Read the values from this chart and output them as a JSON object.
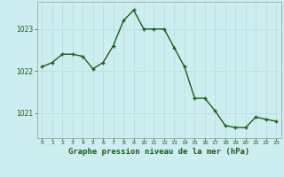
{
  "hours": [
    0,
    1,
    2,
    3,
    4,
    5,
    6,
    7,
    8,
    9,
    10,
    11,
    12,
    13,
    14,
    15,
    16,
    17,
    18,
    19,
    20,
    21,
    22,
    23
  ],
  "pressure": [
    1022.1,
    1022.2,
    1022.4,
    1022.4,
    1022.35,
    1022.05,
    1022.2,
    1022.6,
    1023.2,
    1023.45,
    1023.0,
    1023.0,
    1023.0,
    1022.55,
    1022.1,
    1021.35,
    1021.35,
    1021.05,
    1020.7,
    1020.65,
    1020.65,
    1020.9,
    1020.85,
    1020.8
  ],
  "line_color": "#1a5c1a",
  "marker": "+",
  "bg_color": "#cceef0",
  "grid_color": "#aadddd",
  "xlabel": "Graphe pression niveau de la mer (hPa)",
  "tick_label_color": "#1a5c1a",
  "ylim": [
    1020.4,
    1023.65
  ],
  "yticks": [
    1021,
    1022,
    1023
  ],
  "xticks": [
    0,
    1,
    2,
    3,
    4,
    5,
    6,
    7,
    8,
    9,
    10,
    11,
    12,
    13,
    14,
    15,
    16,
    17,
    18,
    19,
    20,
    21,
    22,
    23
  ]
}
